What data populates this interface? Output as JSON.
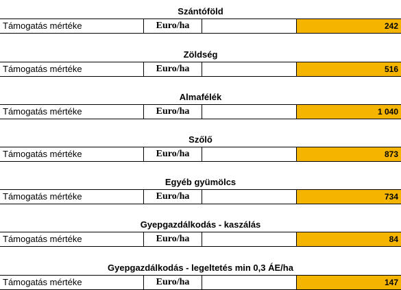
{
  "sections": [
    {
      "title": "Szántóföld",
      "label": "Támogatás mértéke",
      "unit": "Euro/ha",
      "value": "242"
    },
    {
      "title": "Zöldség",
      "label": "Támogatás mértéke",
      "unit": "Euro/ha",
      "value": "516"
    },
    {
      "title": "Almafélék",
      "label": "Támogatás mértéke",
      "unit": "Euro/ha",
      "value": "1 040"
    },
    {
      "title": "Szőlő",
      "label": "Támogatás mértéke",
      "unit": "Euro/ha",
      "value": "873"
    },
    {
      "title": "Egyéb gyümölcs",
      "label": "Támogatás mértéke",
      "unit": "Euro/ha",
      "value": "734"
    },
    {
      "title": "Gyepgazdálkodás - kaszálás",
      "label": "Támogatás mértéke",
      "unit": "Euro/ha",
      "value": "84"
    },
    {
      "title": "Gyepgazdálkodás - legeltetés min 0,3 ÁE/ha",
      "label": "Támogatás mértéke",
      "unit": "Euro/ha",
      "value": "147"
    }
  ],
  "colors": {
    "value_fill": "#f5b400",
    "border": "#000000"
  }
}
